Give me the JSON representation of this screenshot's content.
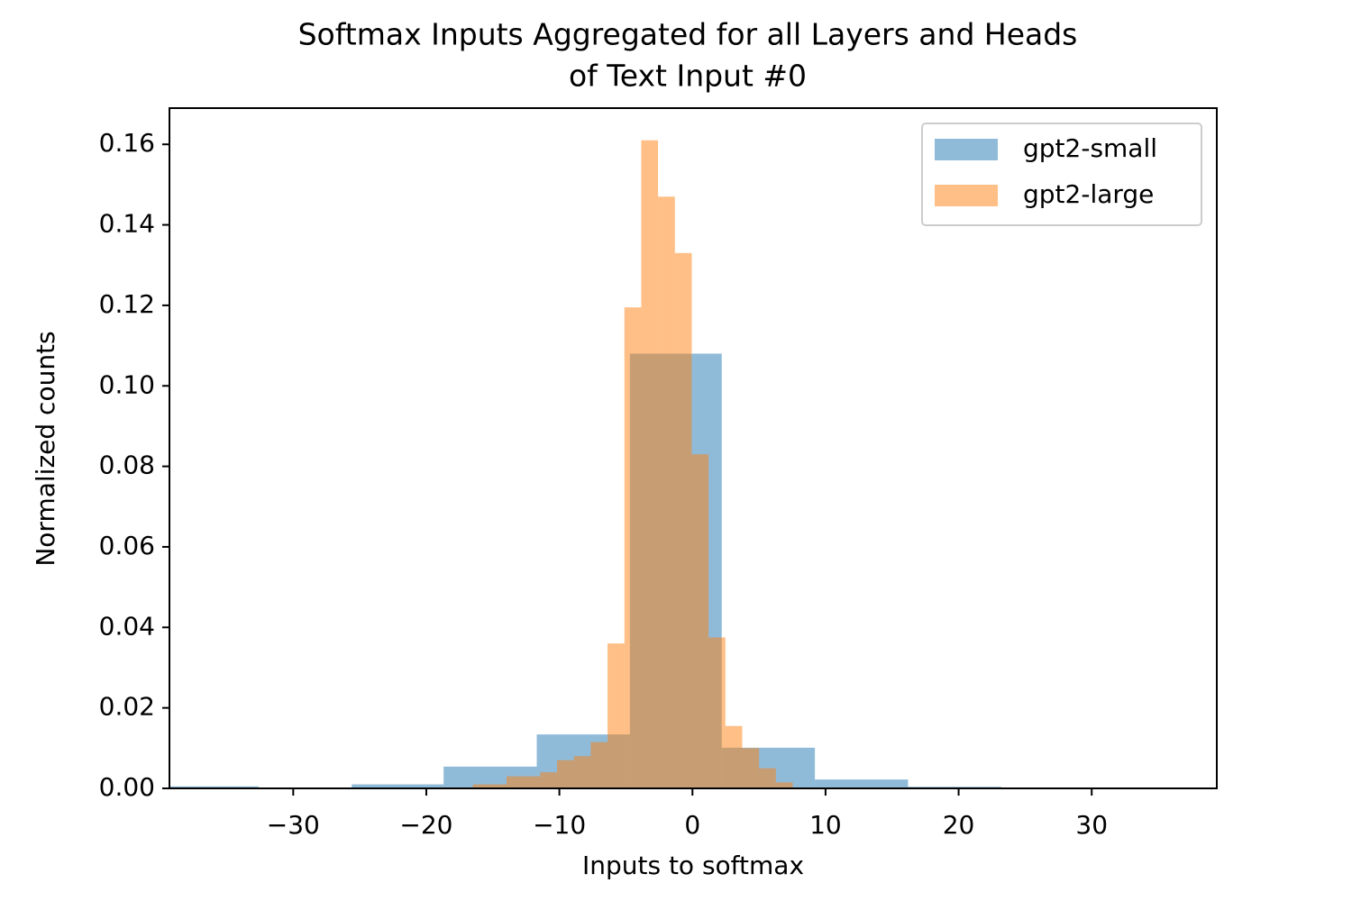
{
  "chart_data": {
    "type": "histogram",
    "title": [
      "Softmax Inputs Aggregated for all Layers and Heads",
      "of Text Input #0"
    ],
    "xlabel": "Inputs to softmax",
    "ylabel": "Normalized counts",
    "xlim": [
      -39.3,
      39.4
    ],
    "ylim": [
      0,
      0.169
    ],
    "xticks": [
      {
        "value": -30,
        "label": "−30"
      },
      {
        "value": -20,
        "label": "−20"
      },
      {
        "value": -10,
        "label": "−10"
      },
      0,
      10,
      20,
      30
    ],
    "yticks": [
      {
        "value": 0,
        "label": "0.00"
      },
      {
        "value": 0.02,
        "label": "0.02"
      },
      {
        "value": 0.04,
        "label": "0.04"
      },
      {
        "value": 0.06,
        "label": "0.06"
      },
      {
        "value": 0.08,
        "label": "0.08"
      },
      {
        "value": 0.1,
        "label": "0.10"
      },
      {
        "value": 0.12,
        "label": "0.12"
      },
      {
        "value": 0.14,
        "label": "0.14"
      },
      {
        "value": 0.16,
        "label": "0.16"
      }
    ],
    "legend": "upper right",
    "alpha": 0.5,
    "series": [
      {
        "name": "gpt2-small",
        "color": "#1f77b4",
        "bins": [
          -39.6,
          -32.6,
          -25.6,
          -18.7,
          -11.7,
          -4.7,
          2.2,
          9.2,
          16.2,
          23.2,
          30.2
        ],
        "values": [
          0.0005,
          0,
          0.001,
          0.0054,
          0.0134,
          0.108,
          0.0101,
          0.0022,
          0.0004,
          0
        ]
      },
      {
        "name": "gpt2-large",
        "color": "#ff7f0e",
        "bins": [
          -16.5,
          -15.235,
          -13.97,
          -12.705,
          -11.44,
          -10.175,
          -8.91,
          -7.645,
          -6.38,
          -5.115,
          -3.85,
          -2.585,
          -1.32,
          -0.055,
          1.21,
          2.475,
          3.74,
          5.005,
          6.27,
          7.535
        ],
        "values": [
          0.001,
          0.001,
          0.003,
          0.003,
          0.004,
          0.007,
          0.008,
          0.0115,
          0.036,
          0.1195,
          0.161,
          0.147,
          0.133,
          0.083,
          0.0375,
          0.0155,
          0.01,
          0.005,
          0.0015
        ]
      }
    ]
  }
}
